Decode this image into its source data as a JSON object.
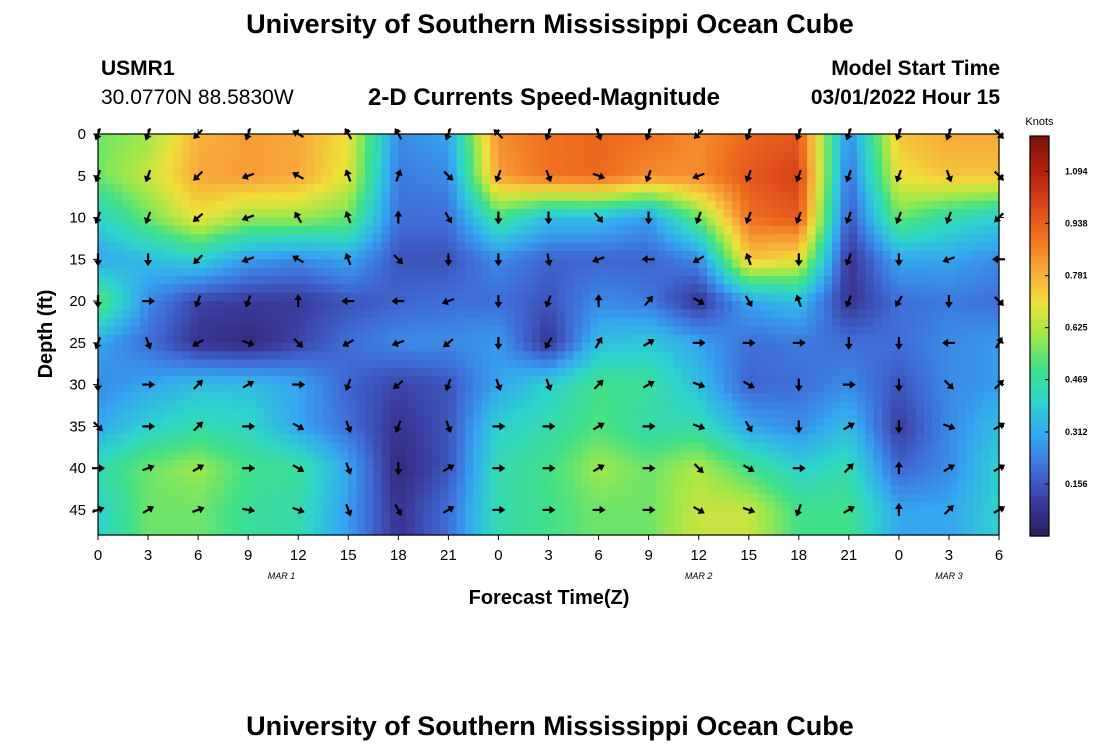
{
  "header": {
    "title": "University of Southern Mississippi Ocean Cube",
    "station_id": "USMR1",
    "station_coords": "30.0770N  88.5830W",
    "plot_subtitle": "2-D Currents Speed-Magnitude",
    "model_label": "Model Start Time",
    "model_time": "03/01/2022 Hour 15"
  },
  "footer": {
    "title": "University of Southern Mississippi Ocean Cube"
  },
  "chart_data": {
    "type": "heatmap",
    "xlabel": "Forecast Time(Z)",
    "ylabel": "Depth (ft)",
    "x_ticks": [
      "0",
      "3",
      "6",
      "9",
      "12",
      "15",
      "18",
      "21",
      "0",
      "3",
      "6",
      "9",
      "12",
      "15",
      "18",
      "21",
      "0",
      "3",
      "6"
    ],
    "x_range": [
      0,
      54
    ],
    "y_ticks": [
      "0",
      "5",
      "10",
      "15",
      "20",
      "25",
      "30",
      "35",
      "40",
      "45"
    ],
    "y_range": [
      0,
      48
    ],
    "date_labels": [
      {
        "label": "MAR 1",
        "hour": 11
      },
      {
        "label": "MAR 2",
        "hour": 36
      },
      {
        "label": "MAR 3",
        "hour": 51
      }
    ],
    "colorbar": {
      "label": "Knots",
      "ticks": [
        "1.094",
        "0.938",
        "0.781",
        "0.625",
        "0.469",
        "0.312",
        "0.156"
      ],
      "range": [
        0,
        1.2
      ],
      "colors": [
        "#2b1d5e",
        "#3a3a9c",
        "#3f6fd8",
        "#35a6f0",
        "#2ed2cf",
        "#3fe08a",
        "#9ee84a",
        "#f0e03a",
        "#f8a83a",
        "#f07020",
        "#d8401a",
        "#b02010",
        "#7a1208"
      ]
    },
    "vector_x_hours": [
      0,
      3,
      6,
      9,
      12,
      15,
      18,
      21,
      24,
      27,
      30,
      33,
      36,
      39,
      42,
      45,
      48,
      51,
      54
    ],
    "vector_depths": [
      0,
      5,
      10,
      15,
      20,
      25,
      30,
      35,
      40,
      45
    ],
    "speed_knots": [
      [
        0.55,
        0.6,
        0.78,
        0.82,
        0.8,
        0.7,
        0.25,
        0.3,
        0.85,
        0.9,
        0.92,
        0.9,
        0.85,
        0.92,
        0.95,
        0.25,
        0.75,
        0.8,
        0.8
      ],
      [
        0.55,
        0.65,
        0.8,
        0.82,
        0.8,
        0.68,
        0.22,
        0.25,
        0.82,
        0.9,
        0.92,
        0.85,
        0.85,
        0.95,
        1.0,
        0.2,
        0.7,
        0.75,
        0.75
      ],
      [
        0.4,
        0.55,
        0.7,
        0.6,
        0.6,
        0.55,
        0.2,
        0.2,
        0.5,
        0.35,
        0.35,
        0.28,
        0.55,
        0.9,
        0.95,
        0.15,
        0.55,
        0.45,
        0.4
      ],
      [
        0.3,
        0.35,
        0.4,
        0.28,
        0.25,
        0.3,
        0.15,
        0.15,
        0.25,
        0.18,
        0.18,
        0.18,
        0.25,
        0.75,
        0.7,
        0.08,
        0.3,
        0.3,
        0.25
      ],
      [
        0.55,
        0.25,
        0.12,
        0.1,
        0.1,
        0.15,
        0.18,
        0.2,
        0.2,
        0.15,
        0.25,
        0.22,
        0.08,
        0.3,
        0.35,
        0.08,
        0.2,
        0.22,
        0.2
      ],
      [
        0.3,
        0.2,
        0.08,
        0.05,
        0.12,
        0.2,
        0.25,
        0.25,
        0.28,
        0.08,
        0.35,
        0.38,
        0.3,
        0.2,
        0.22,
        0.2,
        0.2,
        0.25,
        0.28
      ],
      [
        0.25,
        0.3,
        0.35,
        0.35,
        0.3,
        0.18,
        0.12,
        0.15,
        0.3,
        0.4,
        0.5,
        0.48,
        0.35,
        0.18,
        0.2,
        0.25,
        0.15,
        0.25,
        0.28
      ],
      [
        0.3,
        0.4,
        0.45,
        0.42,
        0.3,
        0.2,
        0.08,
        0.15,
        0.4,
        0.45,
        0.52,
        0.45,
        0.45,
        0.3,
        0.25,
        0.35,
        0.1,
        0.25,
        0.35
      ],
      [
        0.45,
        0.55,
        0.6,
        0.5,
        0.48,
        0.3,
        0.05,
        0.15,
        0.45,
        0.5,
        0.6,
        0.55,
        0.62,
        0.5,
        0.4,
        0.45,
        0.18,
        0.25,
        0.4
      ],
      [
        0.4,
        0.55,
        0.55,
        0.48,
        0.45,
        0.28,
        0.08,
        0.2,
        0.45,
        0.5,
        0.55,
        0.55,
        0.65,
        0.65,
        0.5,
        0.5,
        0.3,
        0.3,
        0.4
      ]
    ],
    "direction_deg": [
      [
        200,
        200,
        225,
        200,
        300,
        330,
        330,
        200,
        315,
        200,
        160,
        200,
        225,
        200,
        200,
        200,
        200,
        200,
        135
      ],
      [
        200,
        200,
        225,
        250,
        300,
        340,
        20,
        135,
        200,
        160,
        110,
        200,
        250,
        200,
        200,
        200,
        200,
        160,
        135
      ],
      [
        200,
        200,
        230,
        250,
        330,
        340,
        0,
        150,
        180,
        180,
        140,
        180,
        200,
        200,
        200,
        200,
        200,
        200,
        225
      ],
      [
        180,
        180,
        225,
        250,
        300,
        340,
        135,
        180,
        180,
        170,
        250,
        270,
        240,
        340,
        180,
        200,
        180,
        250,
        270
      ],
      [
        180,
        90,
        200,
        200,
        0,
        270,
        270,
        250,
        180,
        200,
        0,
        40,
        120,
        150,
        340,
        200,
        210,
        180,
        135
      ],
      [
        200,
        160,
        240,
        110,
        135,
        240,
        250,
        230,
        180,
        210,
        30,
        60,
        90,
        90,
        90,
        180,
        180,
        270,
        30
      ],
      [
        180,
        90,
        45,
        60,
        90,
        200,
        230,
        200,
        160,
        160,
        45,
        60,
        110,
        120,
        180,
        90,
        180,
        135,
        45
      ],
      [
        135,
        90,
        45,
        90,
        120,
        160,
        200,
        160,
        90,
        90,
        60,
        90,
        110,
        150,
        180,
        60,
        180,
        110,
        60
      ],
      [
        90,
        70,
        60,
        90,
        120,
        160,
        180,
        60,
        90,
        90,
        60,
        90,
        135,
        120,
        90,
        45,
        0,
        60,
        60
      ],
      [
        70,
        60,
        70,
        100,
        110,
        160,
        150,
        60,
        90,
        90,
        90,
        90,
        120,
        110,
        200,
        60,
        0,
        45,
        60
      ]
    ]
  }
}
